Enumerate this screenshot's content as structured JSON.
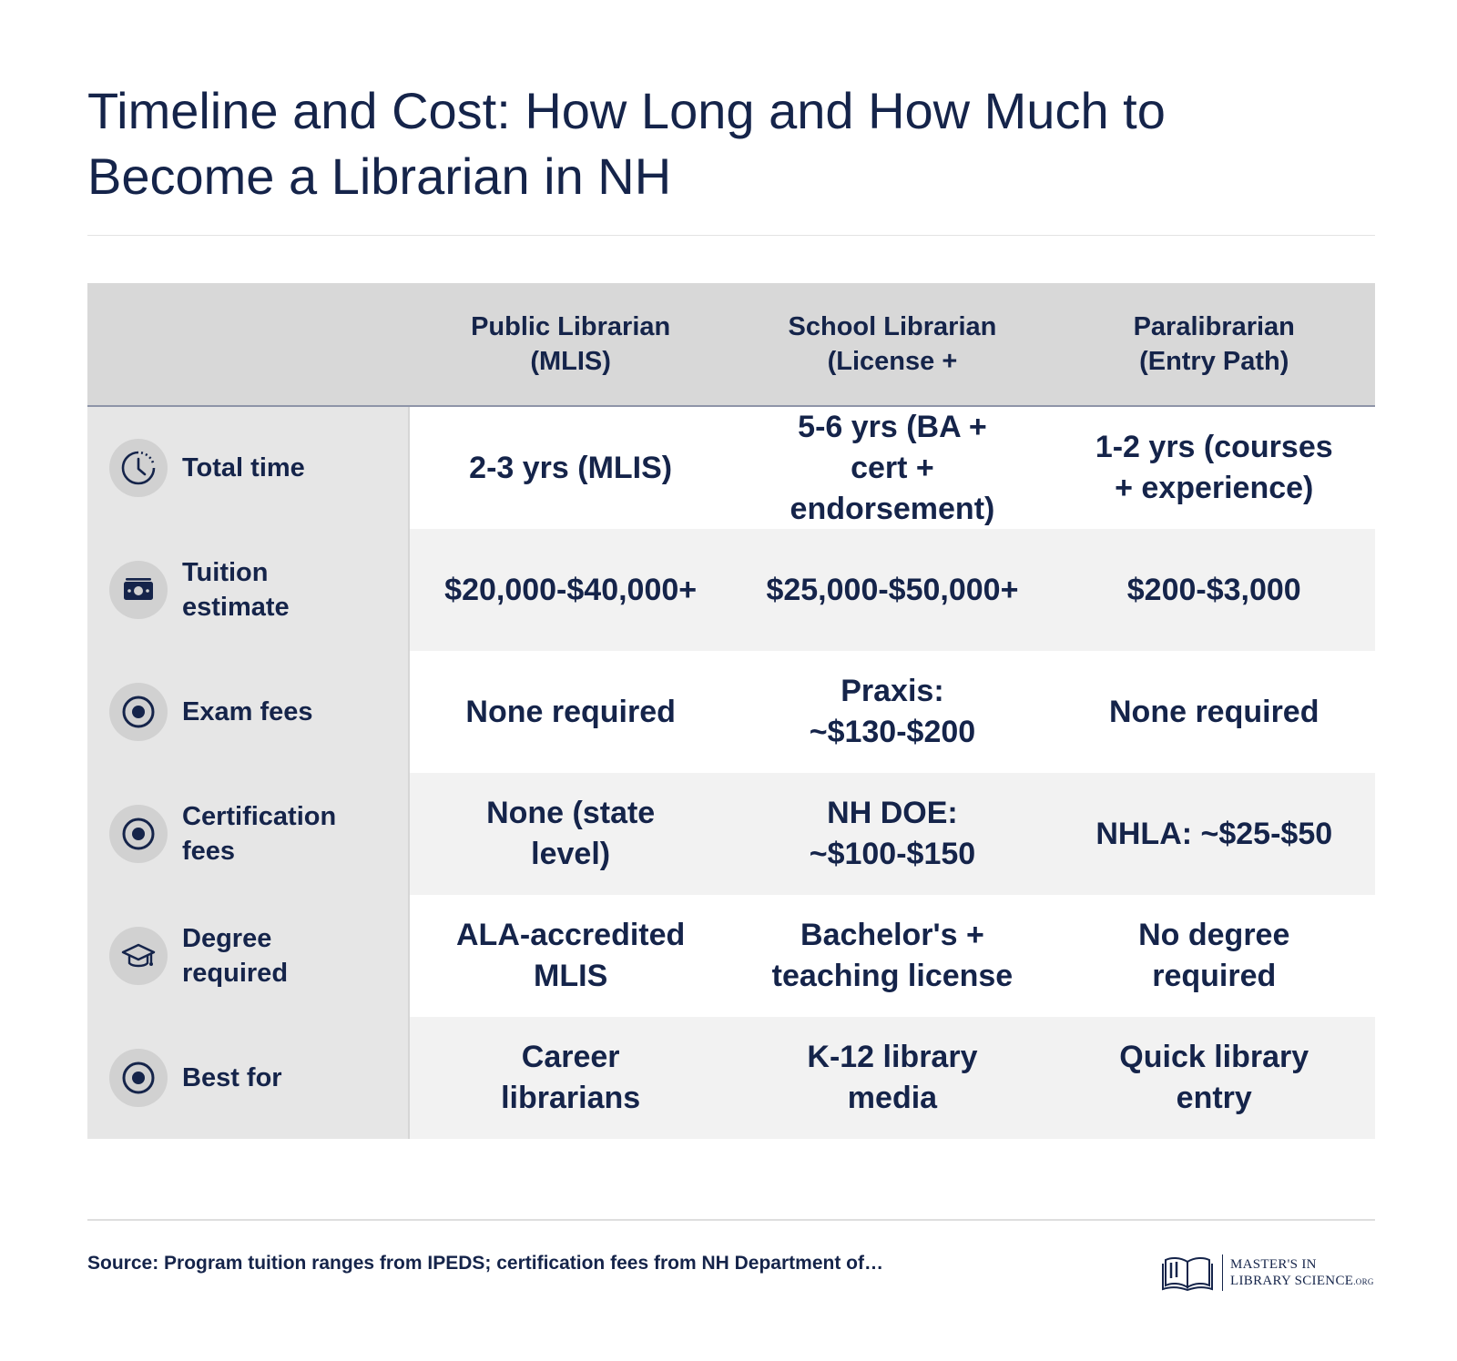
{
  "title": "Timeline and Cost: How Long and How Much to Become a Librarian in NH",
  "table": {
    "columns": [
      "Public Librarian\n(MLIS)",
      "School Librarian\n(License +",
      "Paralibrarian\n(Entry Path)"
    ],
    "rows": [
      {
        "label": "Total time",
        "icon": "clock-icon",
        "cells": [
          "2-3 yrs (MLIS)",
          "5-6 yrs (BA +\ncert +\nendorsement)",
          "1-2 yrs (courses\n+ experience)"
        ]
      },
      {
        "label": "Tuition\nestimate",
        "icon": "money-icon",
        "cells": [
          "$20,000-$40,000+",
          "$25,000-$50,000+",
          "$200-$3,000"
        ]
      },
      {
        "label": "Exam fees",
        "icon": "target-icon",
        "cells": [
          "None required",
          "Praxis:\n~$130-$200",
          "None required"
        ]
      },
      {
        "label": "Certification\nfees",
        "icon": "target-icon",
        "cells": [
          "None (state\nlevel)",
          "NH DOE:\n~$100-$150",
          "NHLA: ~$25-$50"
        ]
      },
      {
        "label": "Degree\nrequired",
        "icon": "graduation-cap-icon",
        "cells": [
          "ALA-accredited\nMLIS",
          "Bachelor's +\nteaching license",
          "No degree\nrequired"
        ]
      },
      {
        "label": "Best for",
        "icon": "target-icon",
        "cells": [
          "Career\nlibrarians",
          "K-12 library\nmedia",
          "Quick library\nentry"
        ]
      }
    ]
  },
  "source": "Source: Program tuition ranges from IPEDS; certification fees from NH Department of…",
  "logo": {
    "line1": "MASTER'S IN",
    "line2": "LIBRARY SCIENCE",
    "suffix": ".ORG"
  },
  "colors": {
    "text": "#15244a",
    "header_bg": "#d8d8d8",
    "label_bg": "#e6e6e6",
    "row_alt_bg": "#f2f2f2",
    "icon_bg": "#d1d1d1"
  }
}
